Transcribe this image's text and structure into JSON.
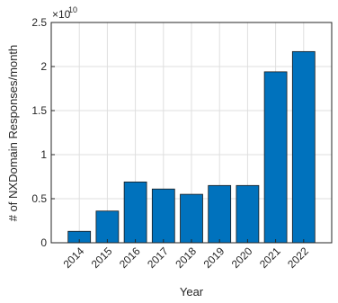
{
  "chart_data": {
    "type": "bar",
    "categories": [
      "2014",
      "2015",
      "2016",
      "2017",
      "2018",
      "2019",
      "2020",
      "2021",
      "2022"
    ],
    "values": [
      1300000000,
      3600000000,
      6900000000,
      6100000000,
      5500000000,
      6500000000,
      6500000000,
      19400000000,
      21700000000
    ],
    "xlabel": "Year",
    "ylabel": "# of NXDomain Responses/month",
    "ylim": [
      0,
      25000000000
    ],
    "yticks": [
      0,
      0.5,
      1,
      1.5,
      2,
      2.5
    ],
    "ytick_labels": [
      "0",
      "0.5",
      "1",
      "1.5",
      "2",
      "2.5"
    ],
    "exponent_base": "×10",
    "exponent_power": "10",
    "grid": true,
    "bar_color": "#0072BD"
  }
}
